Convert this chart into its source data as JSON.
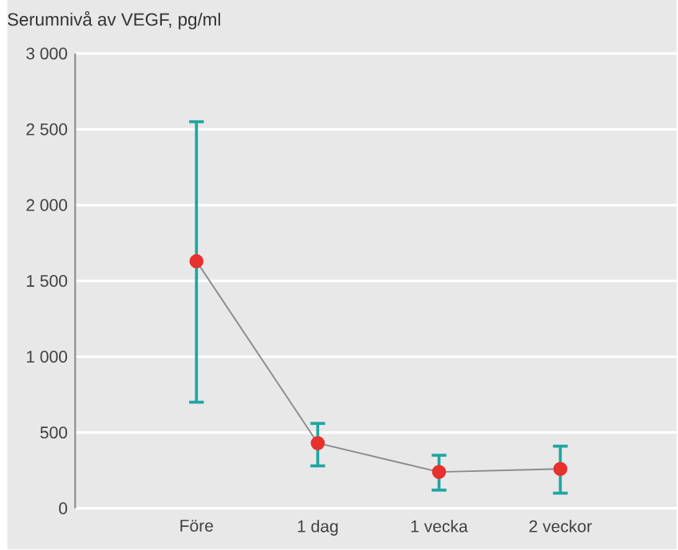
{
  "chart_data": {
    "type": "line",
    "ylabel": "Serumnivå av VEGF, pg/ml",
    "categories": [
      "Före",
      "1 dag",
      "1 vecka",
      "2 veckor"
    ],
    "values": [
      1630,
      430,
      240,
      260
    ],
    "errors": [
      [
        700,
        2550
      ],
      [
        280,
        560
      ],
      [
        120,
        350
      ],
      [
        100,
        410
      ]
    ],
    "color": "#e8302c",
    "marker": "circle",
    "line_style": "solid",
    "grid": "y",
    "ylim": [
      0,
      3000
    ],
    "yticks": [
      0,
      500,
      {
        "value": 1000,
        "label": "1 000"
      },
      {
        "value": 1500,
        "label": "1 500"
      },
      {
        "value": 2000,
        "label": "2 000"
      },
      {
        "value": 2500,
        "label": "2 500"
      },
      {
        "value": 3000,
        "label": "3 000"
      }
    ]
  }
}
